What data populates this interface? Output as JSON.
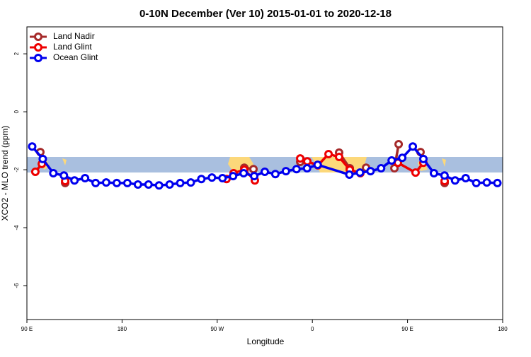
{
  "chart_data": {
    "type": "line",
    "title": "0-10N December (Ver 10)   2015-01-01 to 2020-12-18",
    "xlabel": "Longitude",
    "ylabel": "XCO2 - MLO trend (ppm)",
    "xlim": [
      90,
      540
    ],
    "ylim": [
      -7.17,
      2.93
    ],
    "xticks": [
      {
        "value": 90,
        "label": "90 E"
      },
      180,
      {
        "value": 270,
        "label": "90 W"
      },
      {
        "value": 360,
        "label": "0"
      },
      {
        "value": 450,
        "label": "90 E"
      },
      {
        "value": 540,
        "label": "180"
      }
    ],
    "yticks": [
      -6,
      -4,
      -2,
      0,
      2
    ],
    "legend": "upper left",
    "series": [
      {
        "name": "Land Nadir",
        "color": "#a52a2a",
        "x": [
          102.7,
          null,
          126.2,
          null,
          295.6,
          304.3,
          null,
          348.5,
          null,
          385.3,
          395.4,
          null,
          410.8,
          null,
          437.6,
          441.6,
          null,
          462.3,
          null,
          485.1
        ],
        "values": [
          -1.39,
          null,
          -2.46,
          null,
          -1.93,
          -1.98,
          null,
          -1.73,
          null,
          -1.41,
          -1.95,
          null,
          -1.93,
          null,
          -1.95,
          -1.12,
          null,
          -1.39,
          null,
          -2.46
        ]
      },
      {
        "name": "Land Glint",
        "color": "#ee0000",
        "x": [
          98.0,
          104.1,
          null,
          126.2,
          null,
          278.8,
          285.5,
          295.6,
          305.6,
          null,
          348.5,
          355.2,
          365.2,
          375.3,
          385.3,
          395.4,
          405.4,
          null,
          440.9,
          457.6,
          465.0,
          null,
          485.1
        ],
        "values": [
          -2.07,
          -1.8,
          null,
          -2.39,
          null,
          -2.32,
          -2.12,
          -2.0,
          -2.37,
          null,
          -1.61,
          -1.71,
          -1.85,
          -1.46,
          -1.56,
          -2.0,
          -2.12,
          null,
          -1.76,
          -2.1,
          -1.76,
          null,
          -2.39
        ]
      },
      {
        "name": "Ocean Glint",
        "color": "#0000ee",
        "x": [
          95,
          105,
          115,
          125,
          135,
          145,
          155,
          165,
          175,
          185,
          195,
          205,
          215,
          225,
          235,
          245,
          255,
          265,
          275,
          285,
          295,
          305,
          315,
          325,
          335,
          345,
          355,
          365,
          395,
          405,
          415,
          425,
          435,
          445,
          455,
          465,
          475,
          485,
          495,
          505,
          515,
          525,
          535
        ],
        "values": [
          -1.2,
          -1.63,
          -2.12,
          -2.2,
          -2.37,
          -2.29,
          -2.46,
          -2.44,
          -2.46,
          -2.46,
          -2.51,
          -2.51,
          -2.54,
          -2.51,
          -2.46,
          -2.44,
          -2.32,
          -2.27,
          -2.29,
          -2.22,
          -2.12,
          -2.22,
          -2.07,
          -2.15,
          -2.05,
          -1.98,
          -1.95,
          -1.83,
          -2.17,
          -2.1,
          -2.05,
          -1.95,
          -1.68,
          -1.59,
          -1.2,
          -1.63,
          -2.12,
          -2.2,
          -2.37,
          -2.29,
          -2.46,
          -2.44,
          -2.46
        ]
      }
    ]
  }
}
